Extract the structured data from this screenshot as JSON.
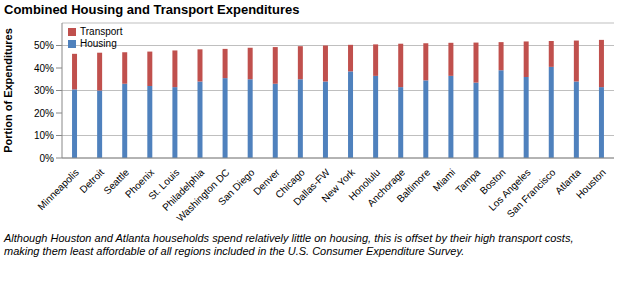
{
  "chart_data": {
    "type": "bar",
    "title": "Combined Housing and Transport Expenditures",
    "y_label": "Portion of Expenditures",
    "annotation": "Although Houston and Atlanta households spend relatively little on housing, this is offset by their high transport costs, making them least affordable of all regions included in the U.S. Consumer Expenditure Survey.",
    "categories": [
      "Minneapolis",
      "Detroit",
      "Seattle",
      "Phoenix",
      "St. Louis",
      "Philadelphia",
      "Washington DC",
      "San Diego",
      "Denver",
      "Chicago",
      "Dallas-FW",
      "New York",
      "Honolulu",
      "Anchorage",
      "Baltimore",
      "Miami",
      "Tampa",
      "Boston",
      "Los Angeles",
      "San Francisco",
      "Atlanta",
      "Houston"
    ],
    "series": [
      {
        "name": "Housing",
        "color": "#4f81bd",
        "values": [
          30.5,
          30,
          33,
          32,
          31.5,
          34,
          35.5,
          35,
          33,
          35,
          34,
          38.5,
          36.5,
          31.5,
          34.5,
          36.5,
          33.5,
          39,
          36,
          40.5,
          34,
          31.5
        ]
      },
      {
        "name": "Transport",
        "color": "#c0504d",
        "values": [
          15.8,
          16.8,
          14,
          15.3,
          16.3,
          14.3,
          13,
          14,
          16.3,
          14.7,
          16,
          11.8,
          14,
          19.3,
          16.5,
          14.7,
          17.8,
          12.5,
          15.8,
          11.5,
          18.2,
          21
        ]
      }
    ],
    "stacked": true,
    "grid": true,
    "legend": "upper left",
    "ylim": [
      0,
      60
    ],
    "yticks": [
      {
        "value": 0,
        "label": "0%"
      },
      {
        "value": 10,
        "label": "10%"
      },
      {
        "value": 20,
        "label": "20%"
      },
      {
        "value": 30,
        "label": "30%"
      },
      {
        "value": 40,
        "label": "40%"
      },
      {
        "value": 50,
        "label": "50%"
      }
    ]
  }
}
